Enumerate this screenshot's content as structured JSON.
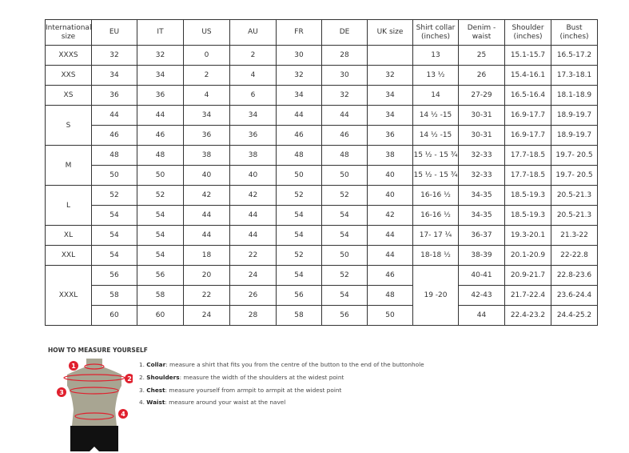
{
  "headers": [
    "International size",
    "EU",
    "IT",
    "US",
    "AU",
    "FR",
    "DE",
    "UK size",
    "Shirt collar (inches)",
    "Denim - waist",
    "Shoulder (inches)",
    "Bust (inches)"
  ],
  "groups": [
    {
      "size": "XXXS",
      "rows": [
        [
          "32",
          "32",
          "0",
          "2",
          "30",
          "28",
          "",
          "13",
          "25",
          "15.1-15.7",
          "16.5-17.2"
        ]
      ]
    },
    {
      "size": "XXS",
      "rows": [
        [
          "34",
          "34",
          "2",
          "4",
          "32",
          "30",
          "32",
          "13 ½",
          "26",
          "15.4-16.1",
          "17.3-18.1"
        ]
      ]
    },
    {
      "size": "XS",
      "rows": [
        [
          "36",
          "36",
          "4",
          "6",
          "34",
          "32",
          "34",
          "14",
          "27-29",
          "16.5-16.4",
          "18.1-18.9"
        ]
      ]
    },
    {
      "size": "S",
      "rows": [
        [
          "44",
          "44",
          "34",
          "34",
          "44",
          "44",
          "34",
          "14 ½ -15",
          "30-31",
          "16.9-17.7",
          "18.9-19.7"
        ],
        [
          "46",
          "46",
          "36",
          "36",
          "46",
          "46",
          "36",
          "14 ½ -15",
          "30-31",
          "16.9-17.7",
          "18.9-19.7"
        ]
      ]
    },
    {
      "size": "M",
      "rows": [
        [
          "48",
          "48",
          "38",
          "38",
          "48",
          "48",
          "38",
          "15 ½ - 15 ¾",
          "32-33",
          "17.7-18.5",
          "19.7- 20.5"
        ],
        [
          "50",
          "50",
          "40",
          "40",
          "50",
          "50",
          "40",
          "15 ½ - 15 ¾",
          "32-33",
          "17.7-18.5",
          "19.7- 20.5"
        ]
      ]
    },
    {
      "size": "L",
      "rows": [
        [
          "52",
          "52",
          "42",
          "42",
          "52",
          "52",
          "40",
          "16-16 ½",
          "34-35",
          "18.5-19.3",
          "20.5-21.3"
        ],
        [
          "54",
          "54",
          "44",
          "44",
          "54",
          "54",
          "42",
          "16-16 ½",
          "34-35",
          "18.5-19.3",
          "20.5-21.3"
        ]
      ]
    },
    {
      "size": "XL",
      "rows": [
        [
          "54",
          "54",
          "44",
          "44",
          "54",
          "54",
          "44",
          "17- 17 ¼",
          "36-37",
          "19.3-20.1",
          "21.3-22"
        ]
      ]
    },
    {
      "size": "XXL",
      "rows": [
        [
          "54",
          "54",
          "18",
          "22",
          "52",
          "50",
          "44",
          "18-18 ½",
          "38-39",
          "20.1-20.9",
          "22-22.8"
        ]
      ]
    },
    {
      "size": "XXXL",
      "collar": "19 -20",
      "rows": [
        [
          "56",
          "56",
          "20",
          "24",
          "54",
          "52",
          "46",
          null,
          "40-41",
          "20.9-21.7",
          "22.8-23.6"
        ],
        [
          "58",
          "58",
          "22",
          "26",
          "56",
          "54",
          "48",
          null,
          "42-43",
          "21.7-22.4",
          "23.6-24.4"
        ],
        [
          "60",
          "60",
          "24",
          "28",
          "58",
          "56",
          "50",
          null,
          "44",
          "22.4-23.2",
          "24.4-25.2"
        ]
      ]
    }
  ],
  "measure": {
    "title": "HOW TO MEASURE YOURSELF",
    "markers": [
      "1",
      "2",
      "3",
      "4"
    ],
    "steps": [
      {
        "num": "1.",
        "term": "Collar",
        "text": ": measure a shirt that fits you from the centre of the button to the end of the buttonhole"
      },
      {
        "num": "2.",
        "term": "Shoulders",
        "text": ": measure the width of the shoulders at the widest point"
      },
      {
        "num": "3.",
        "term": "Chest",
        "text": ": measure yourself from armpit to armpit at the widest point"
      },
      {
        "num": "4.",
        "term": "Waist",
        "text": ": measure around your waist at the navel"
      }
    ]
  },
  "colors": {
    "accent": "#e0202e",
    "torso": "#a8a592",
    "shorts": "#111111"
  }
}
